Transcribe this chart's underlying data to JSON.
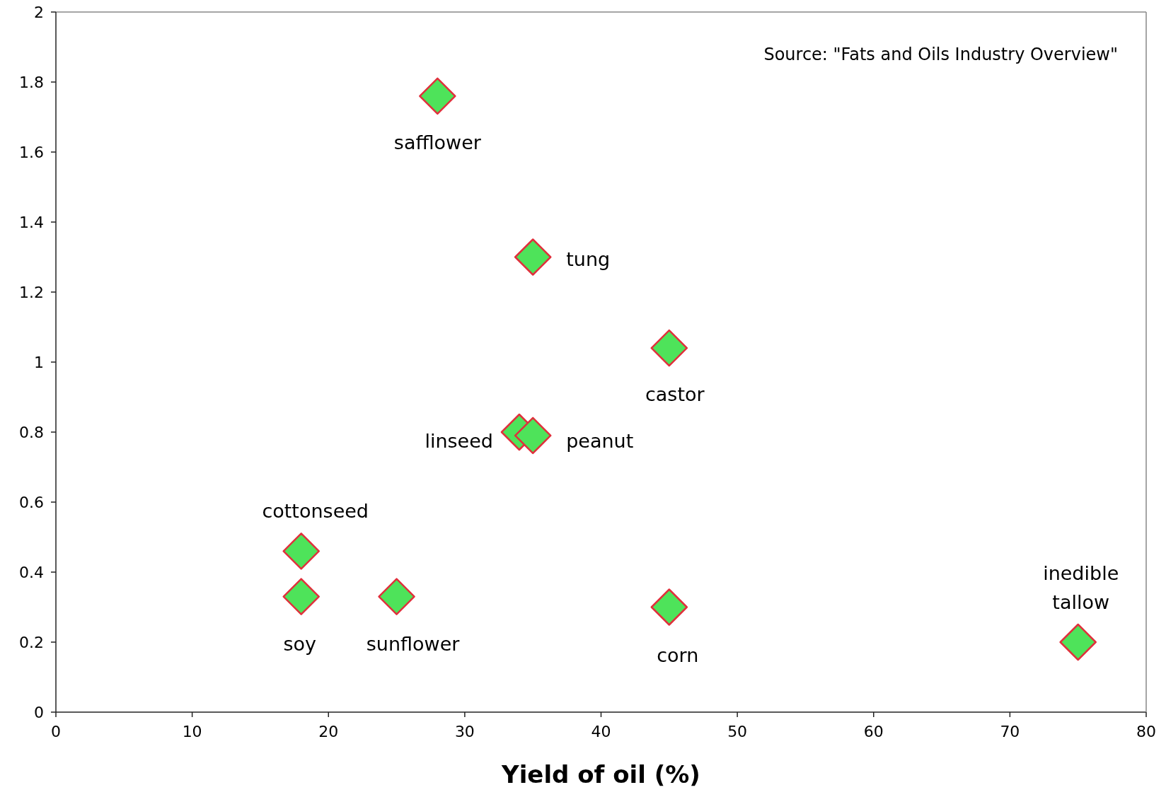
{
  "chart_data": {
    "type": "scatter",
    "xlabel": "Yield of oil (%)",
    "x": [
      28,
      35,
      45,
      34,
      35,
      18,
      18,
      25,
      45,
      75
    ],
    "values": [
      1.76,
      1.3,
      1.04,
      0.8,
      0.79,
      0.46,
      0.33,
      0.33,
      0.3,
      0.2
    ],
    "color": "#4ee35a",
    "marker": "diamond",
    "xlim": [
      0,
      80
    ],
    "xticks": [
      0,
      10,
      20,
      30,
      40,
      50,
      60,
      70,
      80
    ],
    "ylim": [
      0,
      2
    ],
    "yticks": [
      0,
      0.2,
      0.4,
      0.6,
      0.8,
      1,
      1.2,
      1.4,
      1.6,
      1.8,
      2
    ],
    "annotations": [
      "Source: \"Fats and Oils Industry Overview\"",
      {
        "text": "safflower",
        "x": 28,
        "y": 1.76
      },
      {
        "text": "tung",
        "x": 35,
        "y": 1.3
      },
      {
        "text": "castor",
        "x": 45,
        "y": 1.04
      },
      {
        "text": "linseed",
        "x": 34,
        "y": 0.8
      },
      {
        "text": "peanut",
        "x": 35,
        "y": 0.79
      },
      {
        "text": "cottonseed",
        "x": 18,
        "y": 0.46
      },
      {
        "text": "soy",
        "x": 18,
        "y": 0.33
      },
      {
        "text": "sunflower",
        "x": 25,
        "y": 0.33
      },
      {
        "text": "corn",
        "x": 45,
        "y": 0.3
      },
      {
        "text": "inedible tallow",
        "x": 75,
        "y": 0.2
      }
    ]
  }
}
